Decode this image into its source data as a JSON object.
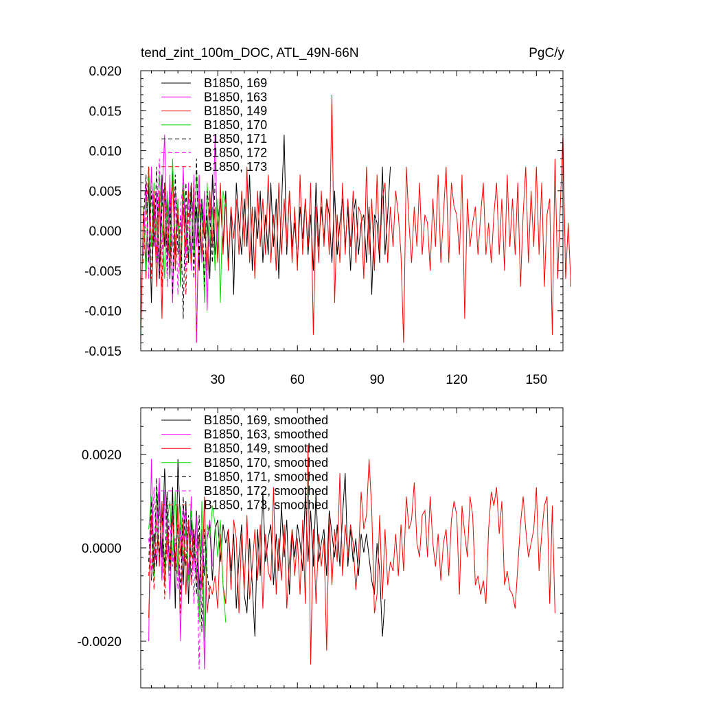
{
  "chart_data": [
    {
      "type": "line",
      "title": "tend_zint_100m_DOC, ATL_49N-66N",
      "units": "PgC/y",
      "xlabel": "",
      "ylabel": "",
      "xlim": [
        1,
        160
      ],
      "ylim": [
        -0.015,
        0.02
      ],
      "xticks": [
        30,
        60,
        90,
        120,
        150
      ],
      "xtick_labels": [
        "30",
        "60",
        "90",
        "120",
        "150"
      ],
      "yticks": [
        -0.015,
        -0.01,
        -0.005,
        0.0,
        0.005,
        0.01,
        0.015,
        0.02
      ],
      "ytick_labels": [
        "-0.015",
        "-0.010",
        "-0.005",
        "0.000",
        "0.005",
        "0.010",
        "0.015",
        "0.020"
      ],
      "grid": false,
      "legend_position": "top-left",
      "series": [
        {
          "name": "B1850, 169",
          "color": "#000000",
          "dash": "solid",
          "x_start": 2,
          "values": [
            0.002,
            -0.004,
            0.006,
            -0.009,
            0.003,
            0.001,
            -0.005,
            0.007,
            -0.002,
            0.004,
            -0.006,
            0.008,
            -0.003,
            0.002,
            -0.007,
            0.005,
            0.001,
            -0.004,
            0.006,
            -0.002,
            0.003,
            -0.005,
            0.004,
            -0.001,
            0.002,
            -0.006,
            0.007,
            -0.003,
            0.001,
            0.004,
            -0.002,
            0.005,
            -0.004,
            0.003,
            -0.008,
            0.006,
            0.001,
            -0.003,
            0.004,
            -0.002,
            0.007,
            -0.005,
            0.003,
            -0.001,
            0.005,
            -0.004,
            0.002,
            -0.003,
            0.006,
            -0.002,
            0.004,
            -0.006,
            0.003,
            0.012,
            -0.003,
            0.005,
            -0.002,
            0.001,
            -0.004,
            0.003,
            -0.001,
            0.004,
            -0.003,
            0.002,
            -0.005,
            0.006,
            -0.002,
            0.003,
            -0.001,
            0.004,
            0.002,
            -0.004,
            0.005,
            -0.003,
            0.001,
            0.004,
            -0.002,
            0.003,
            -0.005,
            0.002,
            0.004,
            -0.003,
            0.001,
            0.002,
            -0.004,
            0.003,
            -0.008,
            0.002,
            0.001,
            -0.004,
            0.008,
            -0.003,
            0.002,
            0.008
          ]
        },
        {
          "name": "B1850, 163",
          "color": "#ff00ff",
          "dash": "solid",
          "x_start": 2,
          "values": [
            -0.003,
            0.006,
            -0.004,
            0.008,
            -0.002,
            0.005,
            -0.006,
            0.004,
            0.012,
            -0.003,
            0.007,
            -0.009,
            0.005,
            0.002,
            -0.004,
            0.008,
            -0.003,
            0.006,
            -0.005,
            0.004,
            -0.002,
            0.007,
            -0.004,
            0.005,
            -0.01,
            0.003,
            -0.002,
            0.012,
            -0.003
          ]
        },
        {
          "name": "B1850, 149",
          "color": "#ff0000",
          "dash": "solid",
          "x_start": 1,
          "values": [
            -0.014,
            0.003,
            -0.006,
            0.008,
            -0.002,
            0.004,
            -0.007,
            0.005,
            -0.011,
            0.006,
            -0.003,
            0.002,
            0.007,
            -0.005,
            0.004,
            -0.006,
            0.003,
            -0.002,
            0.005,
            -0.004,
            0.006,
            -0.014,
            0.004,
            -0.003,
            0.002,
            -0.005,
            0.005,
            -0.002,
            0.003,
            -0.004,
            0.006,
            -0.003,
            0.004,
            -0.005,
            0.003,
            -0.001,
            0.004,
            -0.003,
            0.005,
            -0.002,
            0.008,
            -0.004,
            0.003,
            -0.006,
            0.005,
            -0.002,
            0.004,
            -0.003,
            0.007,
            -0.004,
            0.002,
            -0.005,
            0.006,
            -0.003,
            0.004,
            -0.002,
            0.005,
            -0.004,
            0.003,
            -0.005,
            0.007,
            -0.003,
            0.004,
            -0.002,
            0.006,
            -0.013,
            0.003,
            -0.004,
            0.005,
            -0.002,
            0.004,
            -0.003,
            0.017,
            -0.009,
            0.002,
            -0.004,
            0.006,
            -0.003,
            0.004,
            -0.002,
            0.005,
            -0.004,
            0.003,
            0.002,
            -0.006,
            0.008,
            -0.003,
            0.004,
            -0.005,
            0.007,
            -0.003,
            0.004,
            0.006,
            -0.004,
            0.003,
            -0.002,
            0.005,
            0.002,
            -0.003,
            -0.014,
            0.008,
            0.001,
            -0.004,
            0.003,
            -0.002,
            0.006,
            -0.003,
            0.002,
            0.001,
            -0.005,
            0.004,
            -0.002,
            0.007,
            -0.004,
            0.002,
            0.008,
            -0.004,
            0.006,
            0.003,
            0.002,
            -0.003,
            0.007,
            -0.011,
            0.004,
            -0.002,
            0.001,
            0.003,
            -0.003,
            0.002,
            0.006,
            -0.003,
            0.001,
            -0.004,
            0.002,
            0.006,
            -0.003,
            0.004,
            -0.005,
            0.007,
            -0.002,
            0.004,
            -0.003,
            0.006,
            -0.007,
            0.002,
            0.008,
            -0.004,
            0.005,
            -0.002,
            0.008,
            -0.003,
            0.006,
            -0.007,
            0.002,
            0.004,
            -0.013,
            0.009,
            -0.006,
            0.003,
            0.012,
            -0.006,
            0.001,
            -0.007
          ]
        },
        {
          "name": "B1850, 170",
          "color": "#00dd00",
          "dash": "solid",
          "x_start": 2,
          "values": [
            0.003,
            -0.005,
            0.008,
            -0.002,
            0.006,
            -0.004,
            0.007,
            0.001,
            -0.006,
            0.005,
            -0.003,
            0.009,
            -0.002,
            0.004,
            -0.007,
            0.006,
            0.002,
            -0.004,
            0.005,
            -0.003,
            0.007,
            -0.001,
            0.004,
            -0.009,
            0.006,
            -0.002,
            0.003,
            -0.005,
            0.004,
            -0.009,
            0.005,
            0.003
          ]
        },
        {
          "name": "B1850, 171",
          "color": "#000000",
          "dash": "dashed",
          "x_start": 2,
          "values": [
            0.001,
            0.007,
            -0.004,
            0.005,
            -0.002,
            0.008,
            -0.006,
            0.003,
            0.006,
            -0.005,
            0.004,
            -0.008,
            0.007,
            -0.003,
            0.002,
            -0.011,
            0.006,
            -0.004,
            0.005,
            -0.006,
            0.009,
            -0.003,
            0.004,
            -0.007,
            0.005,
            0.002,
            -0.004,
            0.006
          ]
        },
        {
          "name": "B1850, 172",
          "color": "#ff00ff",
          "dash": "dashed",
          "x_start": 2,
          "values": [
            -0.002,
            0.005,
            -0.006,
            0.007,
            0.002,
            -0.004,
            0.009,
            -0.003,
            0.005,
            -0.007,
            0.006,
            -0.002,
            0.004,
            -0.008,
            0.003,
            0.006,
            -0.005,
            0.004,
            -0.003,
            0.007,
            -0.014,
            0.005,
            0.002
          ]
        },
        {
          "name": "B1850, 173",
          "color": "#ff0000",
          "dash": "dashed",
          "x_start": 2,
          "values": [
            -0.004,
            0.002,
            0.008,
            -0.006,
            0.005,
            -0.003,
            0.004,
            -0.007,
            0.006,
            0.001,
            -0.005,
            0.007,
            -0.002,
            0.003,
            -0.004,
            0.005,
            -0.008,
            0.002,
            0.006
          ]
        }
      ]
    },
    {
      "type": "line",
      "title": "",
      "xlabel": "",
      "ylabel": "",
      "xlim": [
        1,
        160
      ],
      "ylim": [
        -0.003,
        0.003
      ],
      "xticks": [
        30,
        60,
        90,
        120,
        150
      ],
      "yticks": [
        -0.002,
        0.0,
        0.002
      ],
      "ytick_labels": [
        "-0.0020",
        "0.0000",
        "0.0020"
      ],
      "grid": false,
      "legend_position": "top-left",
      "series": [
        {
          "name": "B1850, 169, smoothed",
          "color": "#000000",
          "dash": "solid",
          "x_start": 5,
          "values": [
            -0.0007,
            0.0003,
            -0.0004,
            0.0012,
            -0.0002,
            0.0017,
            0.0006,
            -0.0005,
            0.0013,
            -0.0013,
            0.0019,
            0.0004,
            -0.0008,
            0.001,
            -0.0012,
            0.0006,
            -0.0003,
            0.0008,
            -0.0009,
            0.0003,
            -0.0006,
            0.0002,
            0.0005,
            -0.0007,
            0.0004,
            0.0006,
            -0.0003,
            0.0005,
            0.0001,
            0.0004,
            -0.0005,
            0.0003,
            -0.0013,
            -0.0002,
            0.0005,
            -0.001,
            -0.0014,
            0.0002,
            -0.0008,
            -0.0019,
            0.0004,
            -0.0006,
            0.0012,
            -0.0003,
            0.0002,
            0.0005,
            -0.0008,
            0.0003,
            -0.0005,
            0.0009,
            -0.0002,
            0.0006,
            -0.001,
            0.0004,
            -0.0002,
            0.0005,
            0.0001,
            -0.0005,
            0.0012,
            -0.0003,
            0.0008,
            -0.0004,
            0.0012,
            -0.0003,
            0.0001,
            0.0004,
            -0.0006,
            0.0008,
            0.0003,
            -0.0002,
            0.0005,
            -0.0004,
            0.0007,
            0.0016,
            -0.0004,
            0.0004,
            -0.0003,
            0.0002,
            -0.0006,
            0.0003,
            -0.0001,
            0.0003,
            -0.0002,
            -0.0007,
            -0.001,
            0.0001,
            -0.0005,
            -0.0019,
            -0.0011
          ]
        },
        {
          "name": "B1850, 163, smoothed",
          "color": "#ff00ff",
          "dash": "solid",
          "x_start": 4,
          "values": [
            -0.002,
            0.0019,
            -0.0004,
            0.0006,
            0.0015,
            -0.0007,
            0.0012,
            0.0002,
            -0.0011,
            0.0008,
            -0.0003,
            0.0005,
            -0.002,
            0.0009,
            0.0003,
            -0.0006,
            0.0011,
            -0.0005,
            0.0007,
            -0.0013,
            0.0004,
            -0.0026,
            0.0002,
            0.0006,
            -0.0004
          ]
        },
        {
          "name": "B1850, 149, smoothed",
          "color": "#ff0000",
          "dash": "solid",
          "x_start": 4,
          "values": [
            -0.0015,
            0.0007,
            -0.0006,
            0.0013,
            -0.0004,
            0.001,
            -0.0008,
            0.0004,
            -0.0003,
            0.0007,
            -0.0005,
            0.0009,
            -0.0002,
            0.0006,
            -0.001,
            0.0005,
            -0.0002,
            0.0004,
            -0.0007,
            0.0003,
            -0.0009,
            0.0011,
            -0.0014,
            -0.0008,
            -0.001,
            -0.0006,
            -0.0013,
            0.0003,
            -0.0008,
            -0.0012,
            0.0004,
            -0.0009,
            0.0006,
            0.0002,
            -0.0014,
            0.0003,
            -0.0009,
            0.0007,
            -0.0011,
            -0.0004,
            0.0004,
            -0.0007,
            0.0005,
            -0.0013,
            0.0003,
            -0.0005,
            -0.0007,
            0.0013,
            -0.001,
            0.0002,
            -0.0007,
            0.0005,
            -0.0013,
            -0.0003,
            0.0004,
            -0.0006,
            0.0002,
            -0.001,
            0.0006,
            -0.0012,
            0.0022,
            -0.0025,
            0.0004,
            -0.0012,
            0.0003,
            -0.0004,
            0.0002,
            -0.0022,
            0.0007,
            -0.0008,
            0.0004,
            -0.0003,
            0.0016,
            -0.0006,
            0.0005,
            -0.0002,
            0.0005,
            0.0001,
            -0.0009,
            -0.0002,
            0.0012,
            0.0004,
            0.0007,
            0.0019,
            0.0008,
            -0.0014,
            -0.001,
            0.0007,
            -0.0011,
            0.0004,
            -0.0008,
            -0.0003,
            -0.0005,
            0.0003,
            -0.0006,
            0.0005,
            -0.0005,
            0.0011,
            0.0004,
            0.0006,
            0.0014,
            0.0001,
            -0.0002,
            0.0007,
            0.0008,
            -0.0002,
            0.0011,
            0.0001,
            -0.0004,
            0.0003,
            -0.0007,
            0.0001,
            0.0004,
            -0.0006,
            0.0006,
            0.001,
            0.0007,
            -0.001,
            0.0009,
            0.0003,
            -0.0002,
            0.0011,
            0.0007,
            -0.0008,
            -0.0006,
            -0.001,
            -0.0007,
            -0.0012,
            0.0004,
            0.0012,
            0.0009,
            0.0013,
            0.0003,
            0.001,
            -0.0008,
            -0.0005,
            -0.0009,
            -0.001,
            -0.0013,
            -0.0004,
            0.0005,
            0.0011,
            0.0004,
            -0.0002,
            0.0001,
            0.0004,
            0.0013,
            -0.0005,
            0.0003,
            0.0009,
            0.0011,
            -0.0012,
            0.0009,
            -0.0014
          ]
        },
        {
          "name": "B1850, 170, smoothed",
          "color": "#00dd00",
          "dash": "solid",
          "x_start": 4,
          "values": [
            0.0004,
            0.0011,
            -0.0007,
            0.0013,
            -0.0002,
            0.0008,
            -0.0005,
            0.0006,
            0.001,
            -0.0003,
            0.0012,
            -0.0006,
            0.0009,
            -0.0002,
            0.0004,
            -0.0007,
            0.0008,
            0.0001,
            -0.0004,
            -0.0016,
            0.001,
            -0.002,
            0.0005,
            0.0002,
            0.0009,
            0.0005,
            -0.0002,
            0.0006,
            -0.0008,
            -0.0016
          ]
        },
        {
          "name": "B1850, 171, smoothed",
          "color": "#000000",
          "dash": "dashed",
          "x_start": 4,
          "values": [
            -0.0003,
            0.001,
            -0.0005,
            0.0015,
            -0.0002,
            0.0008,
            -0.0004,
            0.0012,
            -0.0006,
            0.0009,
            -0.0003,
            0.0005,
            -0.001,
            0.0011,
            -0.0004,
            0.0007,
            -0.0007,
            0.0004,
            -0.001,
            0.0007,
            -0.0018,
            0.0004,
            -0.0005,
            -0.0011
          ]
        },
        {
          "name": "B1850, 172, smoothed",
          "color": "#ff00ff",
          "dash": "dashed",
          "x_start": 4,
          "values": [
            0.0002,
            -0.0005,
            0.0013,
            -0.0003,
            0.0009,
            -0.0007,
            0.0011,
            -0.0002,
            0.0006,
            -0.0004,
            0.0002,
            -0.0009,
            0.0005,
            -0.0003,
            0.0008,
            -0.0006,
            0.0004,
            -0.0012,
            0.0002,
            -0.0026,
            0.0003,
            -0.0006
          ]
        },
        {
          "name": "B1850, 173, smoothed",
          "color": "#ff0000",
          "dash": "dashed",
          "x_start": 4,
          "values": [
            -0.0006,
            0.0004,
            -0.0009,
            0.0006,
            -0.0003,
            0.0008,
            -0.0011,
            0.0003,
            -0.0005,
            0.0007,
            -0.0002,
            0.0005,
            -0.0014,
            0.0004,
            -0.0003,
            0.0006,
            -0.0008,
            0.0002
          ]
        }
      ]
    }
  ]
}
